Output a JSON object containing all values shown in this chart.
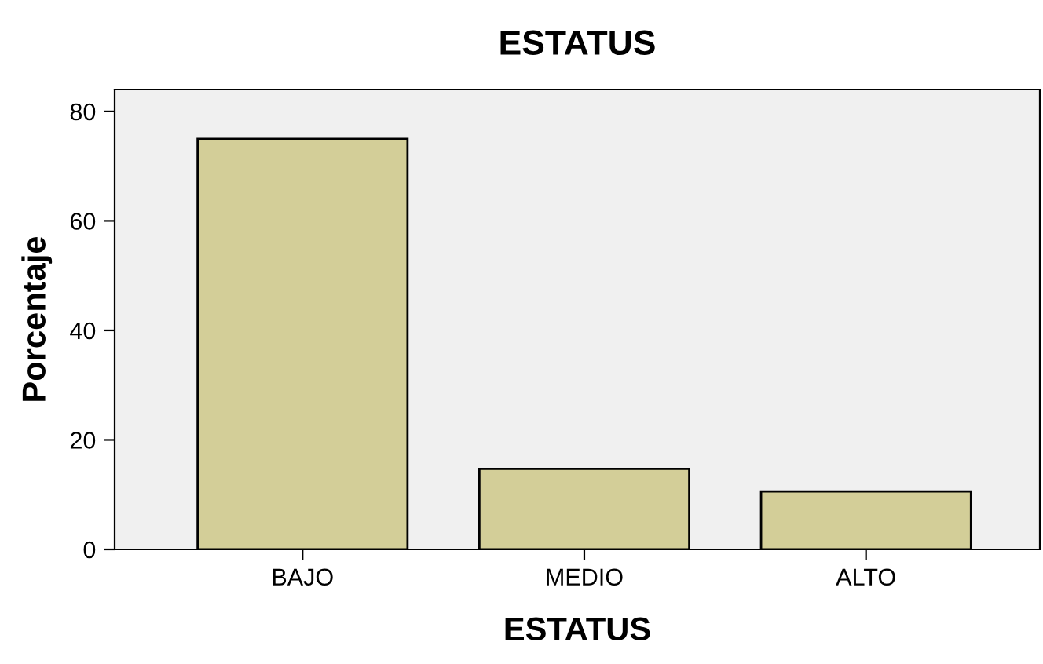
{
  "chart_data": {
    "type": "bar",
    "title": "ESTATUS",
    "xlabel": "ESTATUS",
    "ylabel": "Porcentaje",
    "categories": [
      "BAJO",
      "MEDIO",
      "ALTO"
    ],
    "values": [
      75.0,
      14.7,
      10.6
    ],
    "color": "#d3ce98",
    "ylim": [
      0,
      84
    ],
    "yticks": [
      0,
      20,
      40,
      60,
      80
    ],
    "grid": false,
    "legend": false
  }
}
